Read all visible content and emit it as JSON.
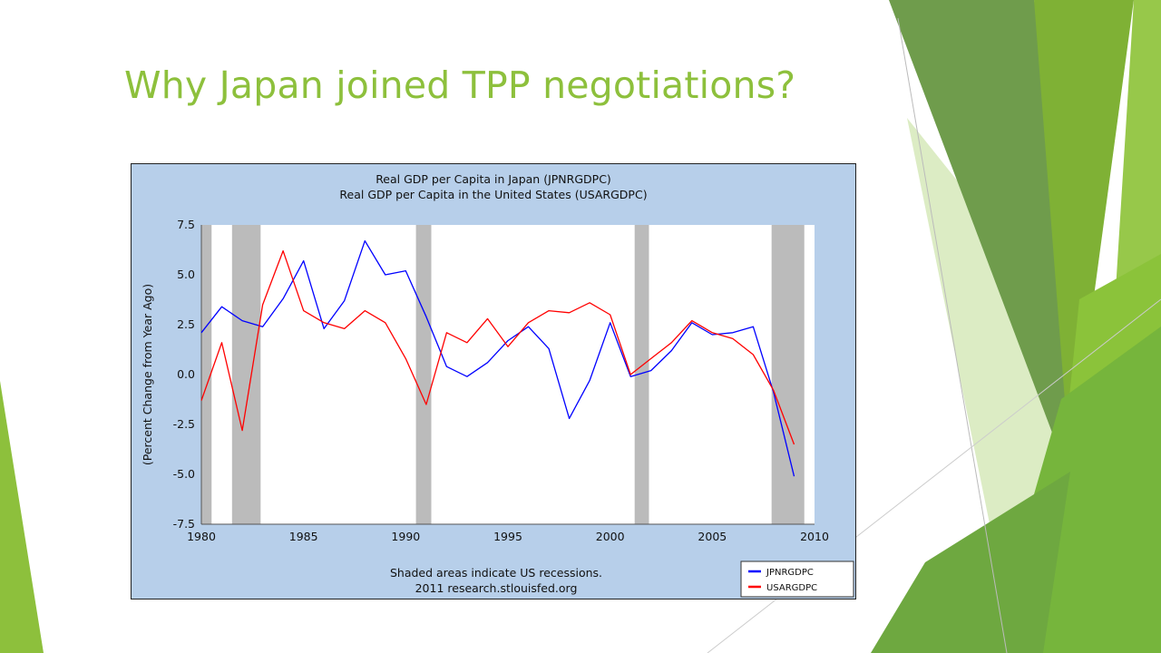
{
  "slide": {
    "title": "Why Japan joined TPP negotiations?",
    "accent_color": "#8dc03c"
  },
  "chart_data": {
    "type": "line",
    "title": "Real GDP per Capita in Japan (JPNRGDPC)",
    "subtitle": "Real GDP per Capita in the United States (USARGDPC)",
    "xlabel": "",
    "ylabel": "(Percent Change from Year Ago)",
    "footer": "Shaded areas indicate US recessions.",
    "source": "2011 research.stlouisfed.org",
    "xlim": [
      1980,
      2010
    ],
    "ylim": [
      -7.5,
      7.5
    ],
    "x_ticks": [
      1980,
      1985,
      1990,
      1995,
      2000,
      2005,
      2010
    ],
    "x_tick_labels": [
      "1980",
      "1985",
      "1990",
      "1995",
      "2000",
      "2005",
      "2010"
    ],
    "y_ticks": [
      7.5,
      5.0,
      2.5,
      0.0,
      -2.5,
      -5.0,
      -7.5
    ],
    "y_tick_labels": [
      "7.5",
      "5.0",
      "2.5",
      "0.0",
      "-2.5",
      "-5.0",
      "-7.5"
    ],
    "grid": false,
    "legend_position": "bottom-right",
    "plot_background": "#ffffff",
    "chart_background": "#b7cfea",
    "recessions": [
      {
        "start": 1980.0,
        "end": 1980.5
      },
      {
        "start": 1981.5,
        "end": 1982.9
      },
      {
        "start": 1990.5,
        "end": 1991.25
      },
      {
        "start": 2001.2,
        "end": 2001.9
      },
      {
        "start": 2007.9,
        "end": 2009.5
      }
    ],
    "recession_color": "#bbbbbb",
    "x": [
      1980,
      1981,
      1982,
      1983,
      1984,
      1985,
      1986,
      1987,
      1988,
      1989,
      1990,
      1991,
      1992,
      1993,
      1994,
      1995,
      1996,
      1997,
      1998,
      1999,
      2000,
      2001,
      2002,
      2003,
      2004,
      2005,
      2006,
      2007,
      2008,
      2009
    ],
    "series": [
      {
        "name": "JPNRGDPC",
        "color": "#0000ff",
        "values": [
          2.1,
          3.4,
          2.7,
          2.4,
          3.8,
          5.7,
          2.3,
          3.7,
          6.7,
          5.0,
          5.2,
          2.9,
          0.4,
          -0.1,
          0.6,
          1.7,
          2.4,
          1.3,
          -2.2,
          -0.3,
          2.6,
          -0.1,
          0.2,
          1.2,
          2.6,
          2.0,
          2.1,
          2.4,
          -0.9,
          -5.1
        ]
      },
      {
        "name": "USARGDPC",
        "color": "#ff0000",
        "values": [
          -1.3,
          1.6,
          -2.8,
          3.5,
          6.2,
          3.2,
          2.6,
          2.3,
          3.2,
          2.6,
          0.8,
          -1.5,
          2.1,
          1.6,
          2.8,
          1.4,
          2.6,
          3.2,
          3.1,
          3.6,
          3.0,
          0.0,
          0.8,
          1.6,
          2.7,
          2.1,
          1.8,
          1.0,
          -0.8,
          -3.5
        ]
      }
    ]
  }
}
